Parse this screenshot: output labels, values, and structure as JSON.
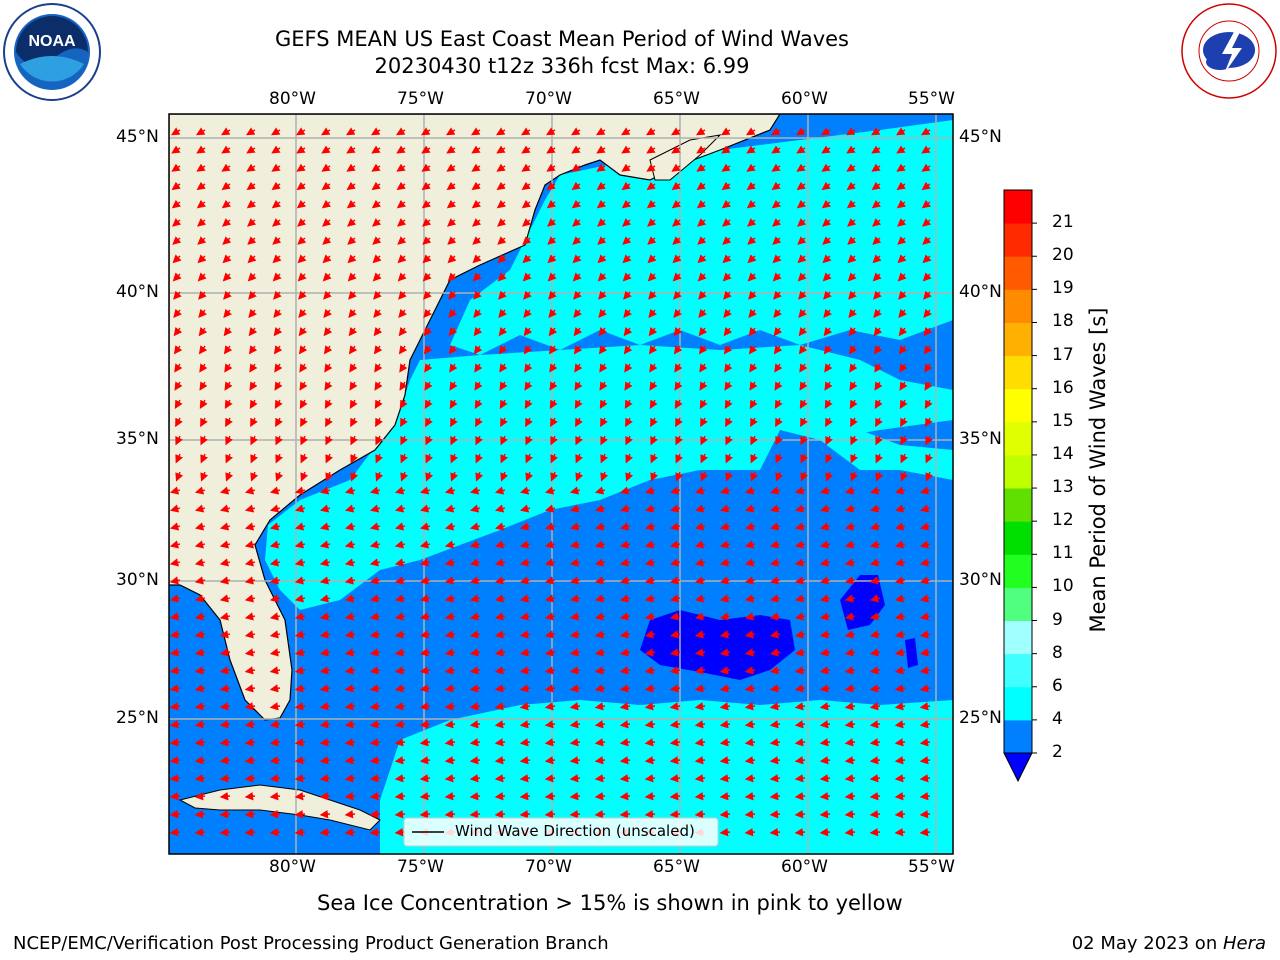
{
  "title": {
    "line1": "GEFS MEAN US East Coast Mean Period of Wind Waves",
    "line2": "20230430 t12z 336h fcst   Max: 6.99"
  },
  "map": {
    "lon_ticks": [
      "80°W",
      "75°W",
      "70°W",
      "65°W",
      "60°W",
      "55°W"
    ],
    "lat_ticks": [
      "45°N",
      "40°N",
      "35°N",
      "30°N",
      "25°N"
    ],
    "extent": {
      "lon": [
        -85,
        -54.5
      ],
      "lat": [
        20.5,
        46
      ]
    },
    "gridlines": true,
    "legend_label": "Wind Wave Direction (unscaled)",
    "legend_placement": "bottom-center",
    "land_color": "#efefdb",
    "arrow_color": "#ff0000",
    "field_colors": {
      "2-4": "#0080ff",
      "4-6": "#00ffff",
      "below-2": "#0000ff"
    }
  },
  "colorbar": {
    "label": "Mean Period of Wind Waves [s]",
    "ticks": [
      "2",
      "4",
      "6",
      "8",
      "9",
      "10",
      "11",
      "12",
      "13",
      "14",
      "15",
      "16",
      "17",
      "18",
      "19",
      "20",
      "21"
    ],
    "colors": [
      "#0080ff",
      "#00ffff",
      "#40ffff",
      "#a0ffff",
      "#50ff80",
      "#20ff20",
      "#00e000",
      "#60e000",
      "#c0ff00",
      "#e0ff00",
      "#ffff00",
      "#ffdd00",
      "#ffb000",
      "#ff8c00",
      "#ff5a00",
      "#ff2a00",
      "#ff0000"
    ],
    "extend_color": "#0000ff"
  },
  "subtitle": "Sea Ice Concentration > 15% is shown in pink to yellow",
  "footer": {
    "left": "NCEP/EMC/Verification Post Processing Product Generation Branch",
    "right_prefix": "02 May 2023 on ",
    "right_machine": "Hera"
  },
  "logos": {
    "noaa": "NOAA",
    "nws": "NATIONAL WEATHER SERVICE"
  }
}
